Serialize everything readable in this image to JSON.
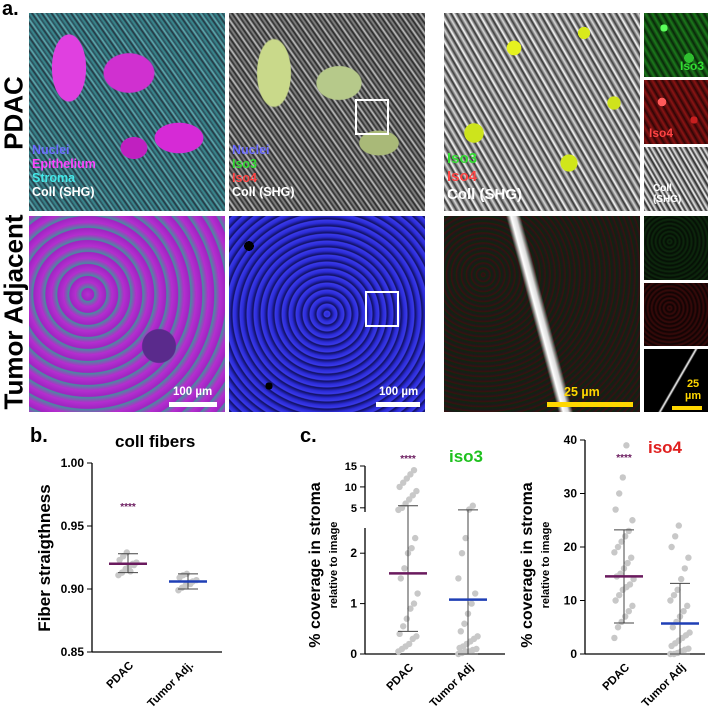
{
  "panel_a": {
    "letter": "a.",
    "row_labels": [
      "PDAC",
      "Tumor Adjacent"
    ],
    "legend_stain": [
      "Nuclei",
      "Epithelium",
      "Stroma",
      "Coll (SHG)"
    ],
    "legend_iso": [
      "Nuclei",
      "Iso3",
      "Iso4",
      "Coll (SHG)"
    ],
    "legend_zoom": [
      "Iso3",
      "Iso4",
      "Coll (SHG)"
    ],
    "channel_labels": [
      "Iso3",
      "Iso4",
      "Coll",
      "(SHG)"
    ],
    "scale_bars": [
      "100 µm",
      "100 µm",
      "25 µm",
      "25",
      "µm"
    ],
    "colors": {
      "nuclei": "#5b5bff",
      "epithelium": "#ff3dff",
      "stroma": "#40e0e0",
      "coll": "#ffffff",
      "iso3": "#22dd22",
      "iso4": "#ff3b3b",
      "scale_yellow": "#ffd700"
    }
  },
  "panel_b": {
    "letter": "b."
  },
  "panel_c": {
    "letter": "c."
  },
  "chart_data": [
    {
      "type": "scatter",
      "title": "coll fibers",
      "ylabel": "Fiber straigthness",
      "categories": [
        "PDAC",
        "Tumor Adj."
      ],
      "ylim": [
        0.85,
        1.0
      ],
      "yticks": [
        "0.85",
        "0.90",
        "0.95",
        "1.00"
      ],
      "significance": "****",
      "series": [
        {
          "category": "PDAC",
          "mean": 0.92,
          "sd_low": 0.913,
          "sd_high": 0.928,
          "points": [
            0.911,
            0.913,
            0.916,
            0.918,
            0.92,
            0.921,
            0.923,
            0.926,
            0.929,
            0.914,
            0.919
          ]
        },
        {
          "category": "Tumor Adj.",
          "mean": 0.906,
          "sd_low": 0.9,
          "sd_high": 0.912,
          "points": [
            0.899,
            0.901,
            0.903,
            0.905,
            0.906,
            0.907,
            0.909,
            0.911,
            0.912,
            0.904
          ]
        }
      ],
      "colors": {
        "PDAC": "#6a1a5e",
        "Tumor Adj.": "#1f3fb5"
      }
    },
    {
      "type": "scatter",
      "title": "iso3",
      "ylabel": "% coverage in stroma",
      "ylabel_sub": "relative to image",
      "categories": [
        "PDAC",
        "Tumor Adj"
      ],
      "yticks_lower": [
        "0",
        "1",
        "2"
      ],
      "yticks_upper": [
        "5",
        "10",
        "15"
      ],
      "ylim_lower": [
        0,
        2.5
      ],
      "ylim_upper": [
        4,
        15
      ],
      "significance": "****",
      "series": [
        {
          "category": "PDAC",
          "mean": 1.6,
          "sd_low": 0.45,
          "sd_high": 5.5,
          "points": [
            0.05,
            0.1,
            0.15,
            0.2,
            0.3,
            0.35,
            0.4,
            0.55,
            0.7,
            0.9,
            1.0,
            1.2,
            1.5,
            1.7,
            2.0,
            2.1,
            2.3,
            4.5,
            5.0,
            6.0,
            7.0,
            8.0,
            9.0,
            10.0,
            11.0,
            12.0,
            13.0,
            14.0
          ]
        },
        {
          "category": "Tumor Adj",
          "mean": 1.08,
          "sd_low": 0.0,
          "sd_high": 4.5,
          "points": [
            0.0,
            0.02,
            0.05,
            0.05,
            0.08,
            0.1,
            0.12,
            0.15,
            0.2,
            0.25,
            0.3,
            0.35,
            0.45,
            0.6,
            0.8,
            1.0,
            1.2,
            1.5,
            2.0,
            2.3,
            4.6,
            5.5
          ]
        }
      ],
      "colors": {
        "PDAC": "#6a1a5e",
        "Tumor Adj": "#1f3fb5",
        "title": "#1fc11f"
      }
    },
    {
      "type": "scatter",
      "title": "iso4",
      "ylabel": "% coverage in stroma",
      "ylabel_sub": "relative to image",
      "categories": [
        "PDAC",
        "Tumor Adj"
      ],
      "ylim": [
        0,
        40
      ],
      "yticks": [
        "0",
        "10",
        "20",
        "30",
        "40"
      ],
      "significance": "****",
      "series": [
        {
          "category": "PDAC",
          "mean": 14.5,
          "sd_low": 5.8,
          "sd_high": 23.2,
          "points": [
            3,
            5,
            6,
            7,
            8,
            9,
            10,
            11,
            12,
            12.5,
            13,
            14,
            14.5,
            15,
            16,
            17,
            18,
            19,
            20,
            21,
            22,
            23,
            25,
            27,
            30,
            33,
            39
          ]
        },
        {
          "category": "Tumor Adj",
          "mean": 5.7,
          "sd_low": 0.0,
          "sd_high": 13.2,
          "points": [
            0,
            0,
            0.2,
            0.5,
            0.8,
            1,
            1.5,
            2,
            2.5,
            3,
            3.5,
            4,
            5,
            6,
            7,
            8,
            9,
            10,
            11,
            12,
            14,
            16,
            18,
            20,
            22,
            24
          ]
        }
      ],
      "colors": {
        "PDAC": "#6a1a5e",
        "Tumor Adj": "#1f3fb5",
        "title": "#e0201f"
      }
    }
  ]
}
